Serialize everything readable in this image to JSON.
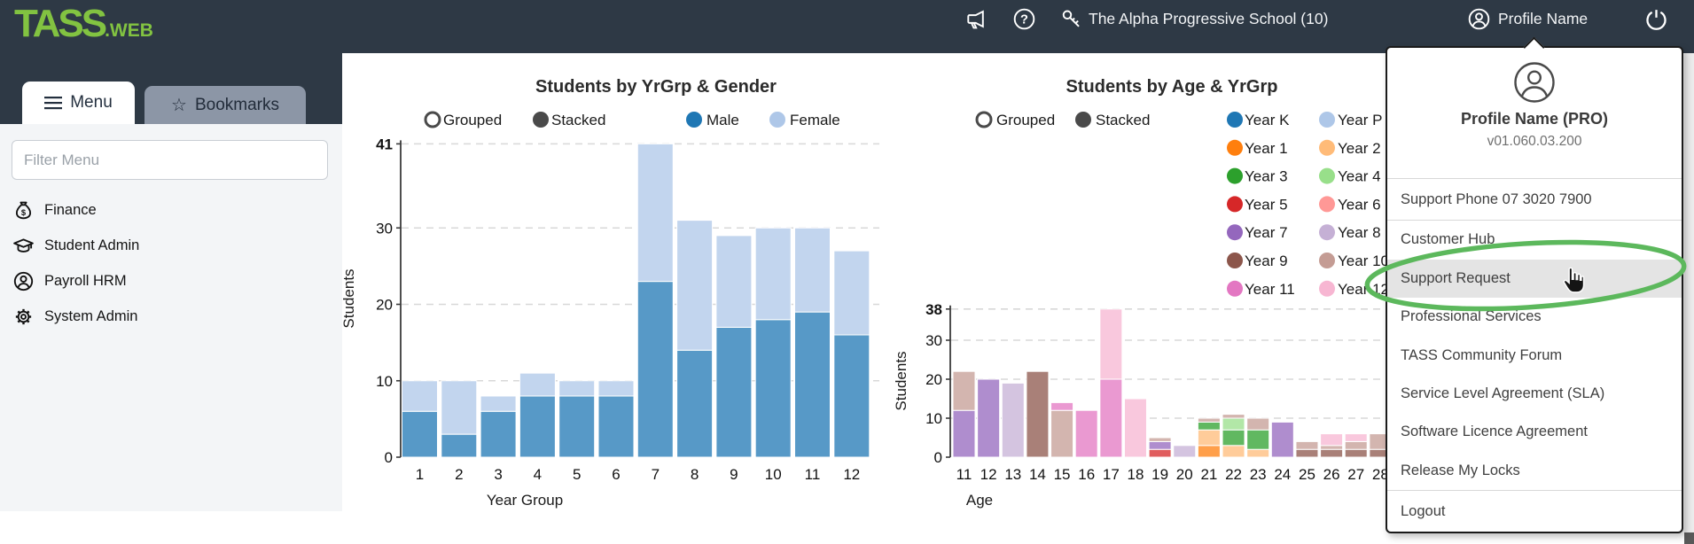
{
  "header": {
    "logo_primary": "TASS",
    "logo_suffix": ".WEB",
    "school_label": "The Alpha Progressive School (10)",
    "profile_label": "Profile Name",
    "bar_color": "#2e3945",
    "logo_color": "#82c341"
  },
  "sidebar": {
    "tabs": [
      {
        "label": "Menu",
        "active": true
      },
      {
        "label": "Bookmarks",
        "active": false
      }
    ],
    "filter_placeholder": "Filter Menu",
    "items": [
      {
        "label": "Finance",
        "icon": "money-bag-icon"
      },
      {
        "label": "Student Admin",
        "icon": "graduation-cap-icon"
      },
      {
        "label": "Payroll HRM",
        "icon": "person-icon"
      },
      {
        "label": "System Admin",
        "icon": "gear-icon"
      }
    ]
  },
  "dropdown": {
    "profile_name": "Profile Name (PRO)",
    "version": "v01.060.03.200",
    "phone": "Support Phone 07 3020 7900",
    "items": [
      "Customer Hub",
      "Support Request",
      "Professional Services",
      "TASS Community Forum",
      "Service Level Agreement (SLA)",
      "Software Licence Agreement",
      "Release My Locks",
      "Logout"
    ],
    "highlighted_item": "Support Request",
    "annotation_color": "#5cb85c"
  },
  "chart_data": [
    {
      "type": "bar",
      "stacked": true,
      "title": "Students by YrGrp & Gender",
      "xlabel": "Year Group",
      "ylabel": "Students",
      "ylim": [
        0,
        41
      ],
      "yticks": [
        0,
        10,
        20,
        30,
        41
      ],
      "grid": true,
      "legend_position": "top",
      "mode_toggles": [
        {
          "label": "Grouped",
          "selected": false
        },
        {
          "label": "Stacked",
          "selected": true
        }
      ],
      "categories": [
        "1",
        "2",
        "3",
        "4",
        "5",
        "6",
        "7",
        "8",
        "9",
        "10",
        "11",
        "12"
      ],
      "series": [
        {
          "name": "Male",
          "color": "#1f77b4",
          "values": [
            6,
            3,
            6,
            8,
            8,
            8,
            23,
            14,
            17,
            18,
            19,
            16
          ]
        },
        {
          "name": "Female",
          "color": "#aec7e8",
          "values": [
            4,
            7,
            2,
            3,
            2,
            2,
            18,
            17,
            12,
            12,
            11,
            11
          ]
        }
      ]
    },
    {
      "type": "bar",
      "stacked": true,
      "title": "Students by Age & YrGrp",
      "xlabel": "Age",
      "ylabel": "Students",
      "ylim": [
        0,
        38
      ],
      "yticks": [
        0,
        10,
        20,
        30,
        38
      ],
      "grid": true,
      "legend_position": "top",
      "mode_toggles": [
        {
          "label": "Grouped",
          "selected": false
        },
        {
          "label": "Stacked",
          "selected": true
        }
      ],
      "categories": [
        "11",
        "12",
        "13",
        "14",
        "15",
        "16",
        "17",
        "18",
        "19",
        "20",
        "21",
        "22",
        "23",
        "24",
        "25",
        "26",
        "27",
        "28"
      ],
      "series": [
        {
          "name": "Year K",
          "color": "#1f77b4",
          "values": [
            0,
            0,
            0,
            0,
            0,
            0,
            0,
            0,
            0,
            0,
            0,
            0,
            0,
            0,
            0,
            0,
            0,
            0
          ]
        },
        {
          "name": "Year P",
          "color": "#aec7e8",
          "values": [
            0,
            0,
            0,
            0,
            0,
            0,
            0,
            0,
            0,
            0,
            0,
            0,
            0,
            0,
            0,
            0,
            0,
            0
          ]
        },
        {
          "name": "Year 1",
          "color": "#ff7f0e",
          "values": [
            0,
            0,
            0,
            0,
            0,
            0,
            0,
            0,
            0,
            0,
            3,
            0,
            0,
            0,
            0,
            0,
            0,
            0
          ]
        },
        {
          "name": "Year 2",
          "color": "#ffbb78",
          "values": [
            0,
            0,
            0,
            0,
            0,
            0,
            0,
            0,
            0,
            0,
            4,
            3,
            2,
            0,
            0,
            0,
            0,
            0
          ]
        },
        {
          "name": "Year 3",
          "color": "#2ca02c",
          "values": [
            0,
            0,
            0,
            0,
            0,
            0,
            0,
            0,
            0,
            0,
            2,
            4,
            5,
            0,
            0,
            0,
            0,
            0
          ]
        },
        {
          "name": "Year 4",
          "color": "#98df8a",
          "values": [
            0,
            0,
            0,
            0,
            0,
            0,
            0,
            0,
            0,
            0,
            0,
            3,
            0,
            0,
            0,
            0,
            0,
            0
          ]
        },
        {
          "name": "Year 5",
          "color": "#d62728",
          "values": [
            0,
            0,
            0,
            0,
            0,
            0,
            0,
            0,
            2,
            0,
            0,
            0,
            0,
            0,
            0,
            0,
            0,
            0
          ]
        },
        {
          "name": "Year 6",
          "color": "#ff9896",
          "values": [
            0,
            0,
            0,
            0,
            0,
            0,
            0,
            0,
            0,
            0,
            0,
            0,
            0,
            0,
            0,
            0,
            0,
            0
          ]
        },
        {
          "name": "Year 7",
          "color": "#9467bd",
          "values": [
            12,
            20,
            0,
            0,
            0,
            0,
            0,
            0,
            2,
            0,
            0,
            0,
            0,
            9,
            0,
            0,
            0,
            0
          ]
        },
        {
          "name": "Year 8",
          "color": "#c5b0d5",
          "values": [
            0,
            0,
            19,
            0,
            0,
            0,
            0,
            0,
            0,
            3,
            0,
            0,
            0,
            0,
            0,
            0,
            0,
            0
          ]
        },
        {
          "name": "Year 9",
          "color": "#8c564b",
          "values": [
            0,
            0,
            0,
            22,
            0,
            0,
            0,
            0,
            0,
            0,
            0,
            0,
            0,
            0,
            2,
            2,
            2,
            2
          ]
        },
        {
          "name": "Year 10",
          "color": "#c49c94",
          "values": [
            10,
            0,
            0,
            0,
            12,
            0,
            0,
            0,
            1,
            0,
            1,
            1,
            3,
            0,
            2,
            1,
            2,
            4
          ]
        },
        {
          "name": "Year 11",
          "color": "#e377c2",
          "values": [
            0,
            0,
            0,
            0,
            2,
            12,
            20,
            0,
            0,
            0,
            0,
            0,
            0,
            0,
            0,
            0,
            0,
            0
          ]
        },
        {
          "name": "Year 12",
          "color": "#f7b6d2",
          "values": [
            0,
            0,
            0,
            0,
            0,
            0,
            18,
            15,
            0,
            0,
            0,
            0,
            0,
            0,
            0,
            3,
            2,
            0
          ]
        }
      ]
    }
  ]
}
